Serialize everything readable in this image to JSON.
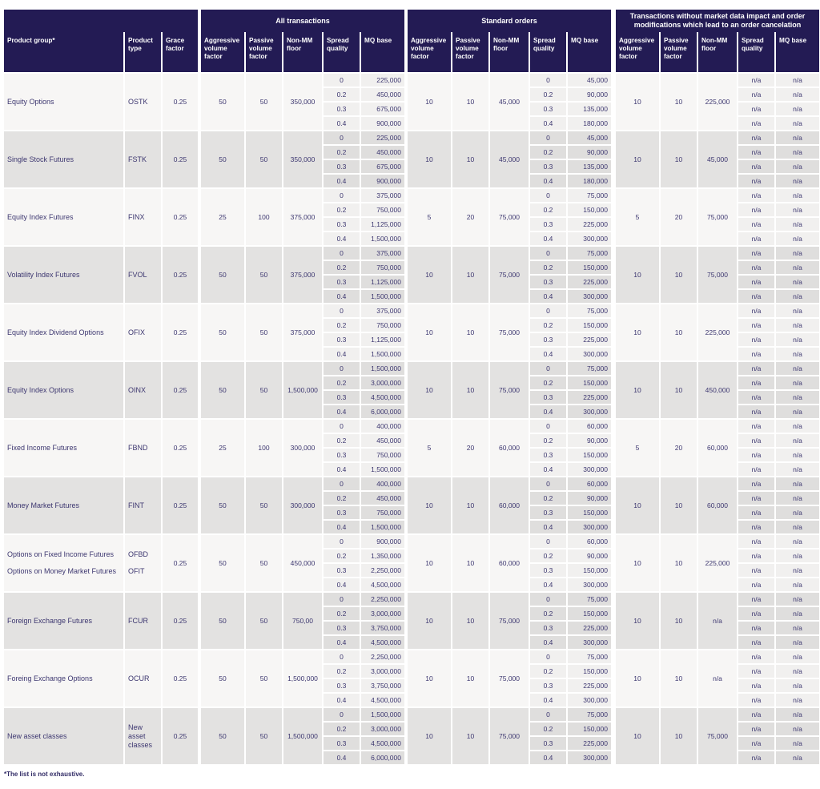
{
  "header": {
    "fixed_columns": [
      "Product group*",
      "Product type",
      "Grace factor"
    ],
    "group_banners": [
      "All transactions",
      "Standard orders",
      "Transactions without  market data impact and order modifications which lead to an order cancelation"
    ],
    "section_columns": [
      "Aggressive volume factor",
      "Passive volume factor",
      "Non-MM floor",
      "Spread quality",
      "MQ base"
    ]
  },
  "colors": {
    "header_bg": "#231b54",
    "text": "#3d3770",
    "row_light": "#f7f6f5",
    "row_dark": "#e3e2e1"
  },
  "footnote": "*The list is not exhaustive.",
  "rows": [
    {
      "product_group": [
        "Equity Options"
      ],
      "product_type": [
        "OSTK"
      ],
      "grace_factor": "0.25",
      "sections": [
        {
          "aggressive": "50",
          "passive": "50",
          "floor": "350,000",
          "spread": [
            "0",
            "0.2",
            "0.3",
            "0.4"
          ],
          "mq": [
            "225,000",
            "450,000",
            "675,000",
            "900,000"
          ]
        },
        {
          "aggressive": "10",
          "passive": "10",
          "floor": "45,000",
          "spread": [
            "0",
            "0.2",
            "0.3",
            "0.4"
          ],
          "mq": [
            "45,000",
            "90,000",
            "135,000",
            "180,000"
          ]
        },
        {
          "aggressive": "10",
          "passive": "10",
          "floor": "225,000",
          "spread": [
            "n/a",
            "n/a",
            "n/a",
            "n/a"
          ],
          "mq": [
            "n/a",
            "n/a",
            "n/a",
            "n/a"
          ]
        }
      ]
    },
    {
      "product_group": [
        "Single Stock Futures"
      ],
      "product_type": [
        "FSTK"
      ],
      "grace_factor": "0.25",
      "sections": [
        {
          "aggressive": "50",
          "passive": "50",
          "floor": "350,000",
          "spread": [
            "0",
            "0.2",
            "0.3",
            "0.4"
          ],
          "mq": [
            "225,000",
            "450,000",
            "675,000",
            "900,000"
          ]
        },
        {
          "aggressive": "10",
          "passive": "10",
          "floor": "45,000",
          "spread": [
            "0",
            "0.2",
            "0.3",
            "0.4"
          ],
          "mq": [
            "45,000",
            "90,000",
            "135,000",
            "180,000"
          ]
        },
        {
          "aggressive": "10",
          "passive": "10",
          "floor": "45,000",
          "spread": [
            "n/a",
            "n/a",
            "n/a",
            "n/a"
          ],
          "mq": [
            "n/a",
            "n/a",
            "n/a",
            "n/a"
          ]
        }
      ]
    },
    {
      "product_group": [
        "Equity Index Futures"
      ],
      "product_type": [
        "FINX"
      ],
      "grace_factor": "0.25",
      "sections": [
        {
          "aggressive": "25",
          "passive": "100",
          "floor": "375,000",
          "spread": [
            "0",
            "0.2",
            "0.3",
            "0.4"
          ],
          "mq": [
            "375,000",
            "750,000",
            "1,125,000",
            "1,500,000"
          ]
        },
        {
          "aggressive": "5",
          "passive": "20",
          "floor": "75,000",
          "spread": [
            "0",
            "0.2",
            "0.3",
            "0.4"
          ],
          "mq": [
            "75,000",
            "150,000",
            "225,000",
            "300,000"
          ]
        },
        {
          "aggressive": "5",
          "passive": "20",
          "floor": "75,000",
          "spread": [
            "n/a",
            "n/a",
            "n/a",
            "n/a"
          ],
          "mq": [
            "n/a",
            "n/a",
            "n/a",
            "n/a"
          ]
        }
      ]
    },
    {
      "product_group": [
        "Volatility Index Futures"
      ],
      "product_type": [
        "FVOL"
      ],
      "grace_factor": "0.25",
      "sections": [
        {
          "aggressive": "50",
          "passive": "50",
          "floor": "375,000",
          "spread": [
            "0",
            "0.2",
            "0.3",
            "0.4"
          ],
          "mq": [
            "375,000",
            "750,000",
            "1,125,000",
            "1,500,000"
          ]
        },
        {
          "aggressive": "10",
          "passive": "10",
          "floor": "75,000",
          "spread": [
            "0",
            "0.2",
            "0.3",
            "0.4"
          ],
          "mq": [
            "75,000",
            "150,000",
            "225,000",
            "300,000"
          ]
        },
        {
          "aggressive": "10",
          "passive": "10",
          "floor": "75,000",
          "spread": [
            "n/a",
            "n/a",
            "n/a",
            "n/a"
          ],
          "mq": [
            "n/a",
            "n/a",
            "n/a",
            "n/a"
          ]
        }
      ]
    },
    {
      "product_group": [
        "Equity Index Dividend Options"
      ],
      "product_type": [
        "OFIX"
      ],
      "grace_factor": "0.25",
      "sections": [
        {
          "aggressive": "50",
          "passive": "50",
          "floor": "375,000",
          "spread": [
            "0",
            "0.2",
            "0.3",
            "0.4"
          ],
          "mq": [
            "375,000",
            "750,000",
            "1,125,000",
            "1,500,000"
          ]
        },
        {
          "aggressive": "10",
          "passive": "10",
          "floor": "75,000",
          "spread": [
            "0",
            "0.2",
            "0.3",
            "0.4"
          ],
          "mq": [
            "75,000",
            "150,000",
            "225,000",
            "300,000"
          ]
        },
        {
          "aggressive": "10",
          "passive": "10",
          "floor": "225,000",
          "spread": [
            "n/a",
            "n/a",
            "n/a",
            "n/a"
          ],
          "mq": [
            "n/a",
            "n/a",
            "n/a",
            "n/a"
          ]
        }
      ]
    },
    {
      "product_group": [
        "Equity Index Options"
      ],
      "product_type": [
        "OINX"
      ],
      "grace_factor": "0.25",
      "sections": [
        {
          "aggressive": "50",
          "passive": "50",
          "floor": "1,500,000",
          "spread": [
            "0",
            "0.2",
            "0.3",
            "0.4"
          ],
          "mq": [
            "1,500,000",
            "3,000,000",
            "4,500,000",
            "6,000,000"
          ]
        },
        {
          "aggressive": "10",
          "passive": "10",
          "floor": "75,000",
          "spread": [
            "0",
            "0.2",
            "0.3",
            "0.4"
          ],
          "mq": [
            "75,000",
            "150,000",
            "225,000",
            "300,000"
          ]
        },
        {
          "aggressive": "10",
          "passive": "10",
          "floor": "450,000",
          "spread": [
            "n/a",
            "n/a",
            "n/a",
            "n/a"
          ],
          "mq": [
            "n/a",
            "n/a",
            "n/a",
            "n/a"
          ]
        }
      ]
    },
    {
      "product_group": [
        "Fixed Income Futures"
      ],
      "product_type": [
        "FBND"
      ],
      "grace_factor": "0.25",
      "sections": [
        {
          "aggressive": "25",
          "passive": "100",
          "floor": "300,000",
          "spread": [
            "0",
            "0.2",
            "0.3",
            "0.4"
          ],
          "mq": [
            "400,000",
            "450,000",
            "750,000",
            "1,500,000"
          ]
        },
        {
          "aggressive": "5",
          "passive": "20",
          "floor": "60,000",
          "spread": [
            "0",
            "0.2",
            "0.3",
            "0.4"
          ],
          "mq": [
            "60,000",
            "90,000",
            "150,000",
            "300,000"
          ]
        },
        {
          "aggressive": "5",
          "passive": "20",
          "floor": "60,000",
          "spread": [
            "n/a",
            "n/a",
            "n/a",
            "n/a"
          ],
          "mq": [
            "n/a",
            "n/a",
            "n/a",
            "n/a"
          ]
        }
      ]
    },
    {
      "product_group": [
        "Money Market Futures"
      ],
      "product_type": [
        "FINT"
      ],
      "grace_factor": "0.25",
      "sections": [
        {
          "aggressive": "50",
          "passive": "50",
          "floor": "300,000",
          "spread": [
            "0",
            "0.2",
            "0.3",
            "0.4"
          ],
          "mq": [
            "400,000",
            "450,000",
            "750,000",
            "1,500,000"
          ]
        },
        {
          "aggressive": "10",
          "passive": "10",
          "floor": "60,000",
          "spread": [
            "0",
            "0.2",
            "0.3",
            "0.4"
          ],
          "mq": [
            "60,000",
            "90,000",
            "150,000",
            "300,000"
          ]
        },
        {
          "aggressive": "10",
          "passive": "10",
          "floor": "60,000",
          "spread": [
            "n/a",
            "n/a",
            "n/a",
            "n/a"
          ],
          "mq": [
            "n/a",
            "n/a",
            "n/a",
            "n/a"
          ]
        }
      ]
    },
    {
      "product_group": [
        "Options on Fixed Income Futures",
        "Options on Money Market Futures"
      ],
      "product_type": [
        "OFBD",
        "OFIT"
      ],
      "grace_factor": "0.25",
      "sections": [
        {
          "aggressive": "50",
          "passive": "50",
          "floor": "450,000",
          "spread": [
            "0",
            "0.2",
            "0.3",
            "0.4"
          ],
          "mq": [
            "900,000",
            "1,350,000",
            "2,250,000",
            "4,500,000"
          ]
        },
        {
          "aggressive": "10",
          "passive": "10",
          "floor": "60,000",
          "spread": [
            "0",
            "0.2",
            "0.3",
            "0.4"
          ],
          "mq": [
            "60,000",
            "90,000",
            "150,000",
            "300,000"
          ]
        },
        {
          "aggressive": "10",
          "passive": "10",
          "floor": "225,000",
          "spread": [
            "n/a",
            "n/a",
            "n/a",
            "n/a"
          ],
          "mq": [
            "n/a",
            "n/a",
            "n/a",
            "n/a"
          ]
        }
      ]
    },
    {
      "product_group": [
        "Foreign Exchange Futures"
      ],
      "product_type": [
        "FCUR"
      ],
      "grace_factor": "0.25",
      "sections": [
        {
          "aggressive": "50",
          "passive": "50",
          "floor": "750,00",
          "spread": [
            "0",
            "0.2",
            "0.3",
            "0.4"
          ],
          "mq": [
            "2,250,000",
            "3,000,000",
            "3,750,000",
            "4,500,000"
          ]
        },
        {
          "aggressive": "10",
          "passive": "10",
          "floor": "75,000",
          "spread": [
            "0",
            "0.2",
            "0.3",
            "0.4"
          ],
          "mq": [
            "75,000",
            "150,000",
            "225,000",
            "300,000"
          ]
        },
        {
          "aggressive": "10",
          "passive": "10",
          "floor": "n/a",
          "spread": [
            "n/a",
            "n/a",
            "n/a",
            "n/a"
          ],
          "mq": [
            "n/a",
            "n/a",
            "n/a",
            "n/a"
          ]
        }
      ]
    },
    {
      "product_group": [
        "Foreing Exchange Options"
      ],
      "product_type": [
        "OCUR"
      ],
      "grace_factor": "0.25",
      "sections": [
        {
          "aggressive": "50",
          "passive": "50",
          "floor": "1,500,000",
          "spread": [
            "0",
            "0.2",
            "0.3",
            "0.4"
          ],
          "mq": [
            "2,250,000",
            "3,000,000",
            "3,750,000",
            "4,500,000"
          ]
        },
        {
          "aggressive": "10",
          "passive": "10",
          "floor": "75,000",
          "spread": [
            "0",
            "0.2",
            "0.3",
            "0.4"
          ],
          "mq": [
            "75,000",
            "150,000",
            "225,000",
            "300,000"
          ]
        },
        {
          "aggressive": "10",
          "passive": "10",
          "floor": "n/a",
          "spread": [
            "n/a",
            "n/a",
            "n/a",
            "n/a"
          ],
          "mq": [
            "n/a",
            "n/a",
            "n/a",
            "n/a"
          ]
        }
      ]
    },
    {
      "product_group": [
        "New asset classes"
      ],
      "product_type": [
        "New asset classes"
      ],
      "grace_factor": "0.25",
      "sections": [
        {
          "aggressive": "50",
          "passive": "50",
          "floor": "1,500,000",
          "spread": [
            "0",
            "0.2",
            "0.3",
            "0.4"
          ],
          "mq": [
            "1,500,000",
            "3,000,000",
            "4,500,000",
            "6,000,000"
          ]
        },
        {
          "aggressive": "10",
          "passive": "10",
          "floor": "75,000",
          "spread": [
            "0",
            "0.2",
            "0.3",
            "0.4"
          ],
          "mq": [
            "75,000",
            "150,000",
            "225,000",
            "300,000"
          ]
        },
        {
          "aggressive": "10",
          "passive": "10",
          "floor": "75,000",
          "spread": [
            "n/a",
            "n/a",
            "n/a",
            "n/a"
          ],
          "mq": [
            "n/a",
            "n/a",
            "n/a",
            "n/a"
          ]
        }
      ]
    }
  ]
}
